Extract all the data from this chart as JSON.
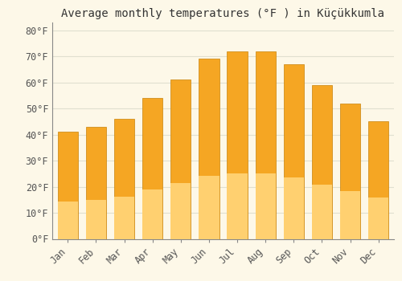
{
  "title": "Average monthly temperatures (°F ) in Küçükkumla",
  "months": [
    "Jan",
    "Feb",
    "Mar",
    "Apr",
    "May",
    "Jun",
    "Jul",
    "Aug",
    "Sep",
    "Oct",
    "Nov",
    "Dec"
  ],
  "values": [
    41,
    43,
    46,
    54,
    61,
    69,
    72,
    72,
    67,
    59,
    52,
    45
  ],
  "bar_color_top": "#F5A623",
  "bar_color_bottom": "#FFD070",
  "bar_edge_color": "#C8830A",
  "background_color": "#FDF8E8",
  "grid_color": "#E0E0D0",
  "ylim": [
    0,
    83
  ],
  "yticks": [
    0,
    10,
    20,
    30,
    40,
    50,
    60,
    70,
    80
  ],
  "title_fontsize": 10,
  "tick_fontsize": 8.5,
  "font_family": "monospace"
}
